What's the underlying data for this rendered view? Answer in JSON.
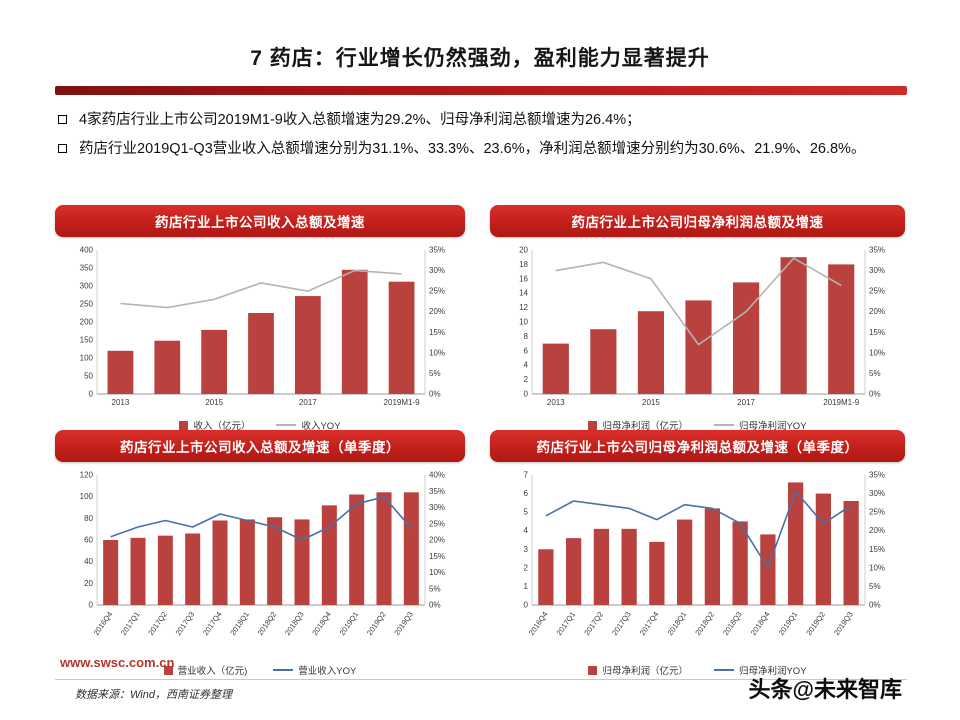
{
  "page": {
    "title": "7 药店：行业增长仍然强劲，盈利能力显著提升",
    "bullets": [
      "4家药店行业上市公司2019M1-9收入总额增速为29.2%、归母净利润总额增速为26.4%；",
      "药店行业2019Q1-Q3营业收入总额增速分别为31.1%、33.3%、23.6%，净利润总额增速分别约为30.6%、21.9%、26.8%。"
    ]
  },
  "footer": {
    "website": "www.swsc.com.cn",
    "source": "数据来源：Wind，西南证券整理",
    "watermark": "头条@未来智库"
  },
  "colors": {
    "bar_red": "#b9423e",
    "banner_red": "#c4261d",
    "line_gray": "#b3b3b3",
    "line_blue": "#4a6fa8"
  },
  "chart_data": [
    {
      "type": "bar",
      "title": "药店行业上市公司收入总额及增速",
      "categories": [
        "2013",
        "2014",
        "2015",
        "2016",
        "2017",
        "2018",
        "2019M1-9"
      ],
      "series": [
        {
          "name": "收入（亿元）",
          "type": "bar",
          "values": [
            120,
            148,
            178,
            225,
            272,
            345,
            312
          ]
        },
        {
          "name": "收入YOY",
          "type": "line",
          "values": [
            22,
            21,
            23,
            27,
            25,
            30,
            29.2
          ]
        }
      ],
      "ylim_left": [
        0,
        400
      ],
      "ytick_left": 50,
      "ylim_right": [
        0,
        35
      ],
      "ytick_right": 5,
      "label_every": 2,
      "rotate_labels": false,
      "grid": false,
      "bar_color": "#b9423e",
      "line_color": "#b3b3b3",
      "legend_position": "bottom"
    },
    {
      "type": "bar",
      "title": "药店行业上市公司归母净利润总额及增速",
      "categories": [
        "2013",
        "2014",
        "2015",
        "2016",
        "2017",
        "2018",
        "2019M1-9"
      ],
      "series": [
        {
          "name": "归母净利润（亿元）",
          "type": "bar",
          "values": [
            7,
            9,
            11.5,
            13,
            15.5,
            19,
            18
          ]
        },
        {
          "name": "归母净利润YOY",
          "type": "line",
          "values": [
            30,
            32,
            28,
            12,
            20,
            33,
            26.4
          ]
        }
      ],
      "ylim_left": [
        0,
        20
      ],
      "ytick_left": 2,
      "ylim_right": [
        0,
        35
      ],
      "ytick_right": 5,
      "label_every": 2,
      "rotate_labels": false,
      "grid": false,
      "bar_color": "#b9423e",
      "line_color": "#b3b3b3",
      "legend_position": "bottom"
    },
    {
      "type": "bar",
      "title": "药店行业上市公司收入总额及增速（单季度）",
      "categories": [
        "2016Q4",
        "2017Q1",
        "2017Q2",
        "2017Q3",
        "2017Q4",
        "2018Q1",
        "2018Q2",
        "2018Q3",
        "2018Q4",
        "2019Q1",
        "2019Q2",
        "2019Q3"
      ],
      "series": [
        {
          "name": "营业收入（亿元)",
          "type": "bar",
          "values": [
            60,
            62,
            64,
            66,
            78,
            79,
            81,
            79,
            92,
            102,
            104,
            104
          ]
        },
        {
          "name": "营业收入YOY",
          "type": "line",
          "values": [
            21,
            24,
            26,
            24,
            28,
            26,
            24,
            20,
            24,
            31.1,
            33.3,
            23.6
          ]
        }
      ],
      "ylim_left": [
        0,
        120
      ],
      "ytick_left": 20,
      "ylim_right": [
        0,
        40
      ],
      "ytick_right": 5,
      "label_every": 1,
      "rotate_labels": true,
      "grid": false,
      "bar_color": "#b9423e",
      "line_color": "#4a6fa8",
      "legend_position": "bottom"
    },
    {
      "type": "bar",
      "title": "药店行业上市公司归母净利润总额及增速（单季度）",
      "categories": [
        "2016Q4",
        "2017Q1",
        "2017Q2",
        "2017Q3",
        "2017Q4",
        "2018Q1",
        "2018Q2",
        "2018Q3",
        "2018Q4",
        "2019Q1",
        "2019Q2",
        "2019Q3"
      ],
      "series": [
        {
          "name": "归母净利润（亿元）",
          "type": "bar",
          "values": [
            3.0,
            3.6,
            4.1,
            4.1,
            3.4,
            4.6,
            5.2,
            4.5,
            3.8,
            6.6,
            6.0,
            5.6
          ]
        },
        {
          "name": "归母净利润YOY",
          "type": "line",
          "values": [
            24,
            28,
            27,
            26,
            23,
            27,
            26,
            22,
            10,
            30.6,
            21.9,
            26.8
          ]
        }
      ],
      "ylim_left": [
        0,
        7
      ],
      "ytick_left": 1,
      "ylim_right": [
        0,
        35
      ],
      "ytick_right": 5,
      "label_every": 1,
      "rotate_labels": true,
      "grid": false,
      "bar_color": "#b9423e",
      "line_color": "#4a6fa8",
      "legend_position": "bottom"
    }
  ]
}
